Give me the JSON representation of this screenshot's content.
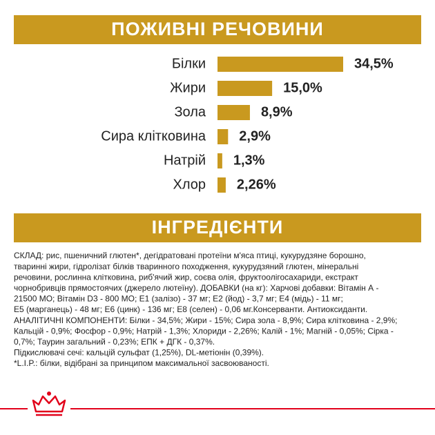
{
  "chart_data": {
    "type": "bar",
    "orientation": "horizontal",
    "title": "ПОЖИВНІ РЕЧОВИНИ",
    "categories": [
      "Білки",
      "Жири",
      "Зола",
      "Сира клітковина",
      "Натрій",
      "Хлор"
    ],
    "values": [
      34.5,
      15.0,
      8.9,
      2.9,
      1.3,
      2.26
    ],
    "value_labels": [
      "34,5%",
      "15,0%",
      "8,9%",
      "2,9%",
      "1,3%",
      "2,26%"
    ],
    "color": "#c9991f"
  },
  "ingredients": {
    "title": "ІНГРЕДІЄНТИ",
    "lines": [
      "СКЛАД: рис, пшеничний глютен*, дегідратовані протеїни м'яса птиці, кукурудзяне борошно,",
      "тваринні жири, гідролізат білків тваринного походження, кукурудзяний глютен, мінеральні",
      "речовини, рослинна клітковина, риб'ячий жир, соєва олія, фруктоолігосахариди, екстракт",
      "чорнобривців прямостоячих (джерело лютеїну). ДОБАВКИ (на кг): Харчові добавки: Вітамін А -",
      "21500 МО; Вітамін D3 - 800 МО; E1 (залізо) - 37 мг; E2 (йод) - 3,7 мг; E4 (мідь) - 11 мг;",
      "E5 (марганець) - 48 мг; E6 (цинк) - 136 мг; E8 (селен) - 0,06 мг.Консерванти. Антиоксиданти.",
      "АНАЛІТИЧНІ КОМПОНЕНТИ: Білки - 34,5%; Жири - 15%; Сира зола - 8,9%; Сира клітковина - 2,9%;",
      "Кальцій - 0,9%; Фосфор - 0,9%; Натрій - 1,3%; Хлориди - 2,26%; Калій - 1%; Магній - 0,05%; Сірка -",
      "0,7%; Таурин загальний - 0,23%; ЕПК + ДГК - 0,37%.",
      "Підкислювачі сечі: кальцій сульфат (1,25%), DL-метіонін (0,39%).",
      "*L.I.P.: білки, відібрані за принципом максимальної засвоюваності."
    ]
  }
}
